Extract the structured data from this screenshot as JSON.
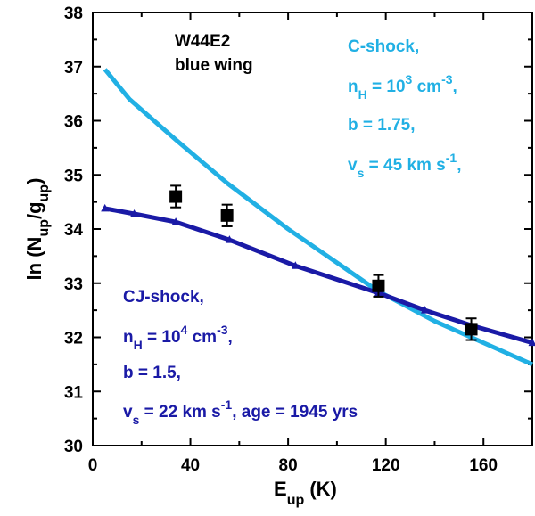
{
  "chart_data": {
    "type": "line",
    "xlabel": {
      "main": "E",
      "sub": "up",
      "unit": " (K)"
    },
    "ylabel": {
      "prefix": "ln (N",
      "sub1": "up",
      "mid": "/g",
      "sub2": "up",
      "suffix": ")"
    },
    "xlim": [
      0,
      180
    ],
    "ylim": [
      30,
      38
    ],
    "xticks": [
      0,
      40,
      80,
      120,
      160
    ],
    "yticks": [
      30,
      31,
      32,
      33,
      34,
      35,
      36,
      37,
      38
    ],
    "series": [
      {
        "key": "cshock",
        "color": "#21b0e4",
        "marker": "none",
        "x": [
          5,
          15,
          34,
          55,
          80,
          117,
          140,
          160,
          180
        ],
        "y": [
          36.95,
          36.4,
          35.65,
          34.85,
          34.0,
          32.85,
          32.3,
          31.9,
          31.5
        ]
      },
      {
        "key": "cjshock",
        "color": "#1a1aa6",
        "marker": "triangle",
        "x": [
          5,
          17,
          34,
          56,
          83,
          117,
          136,
          155,
          180
        ],
        "y": [
          34.38,
          34.28,
          34.13,
          33.8,
          33.32,
          32.82,
          32.5,
          32.22,
          31.9
        ]
      }
    ],
    "observed": {
      "x": [
        34,
        55,
        117,
        155
      ],
      "y": [
        34.6,
        34.25,
        32.95,
        32.15
      ],
      "yerr": [
        0.2,
        0.2,
        0.2,
        0.2
      ]
    },
    "annotations": {
      "source": {
        "line1": "W44E2",
        "line2": "blue wing"
      },
      "cshock": {
        "title": "C-shock,",
        "density": {
          "prefix": "n",
          "sub": "H",
          "mid": " = 10",
          "sup": "3",
          "unit": " cm",
          "unitsup": "-3",
          "tail": ","
        },
        "b": "b = 1.75,",
        "vs": {
          "prefix": "v",
          "sub": "s",
          "mid": " = 45 km s",
          "sup": "-1",
          "tail": ","
        }
      },
      "cjshock": {
        "title": "CJ-shock,",
        "density": {
          "prefix": "n",
          "sub": "H",
          "mid": " = 10",
          "sup": "4",
          "unit": " cm",
          "unitsup": "-3",
          "tail": ","
        },
        "b": "b = 1.5,",
        "vs": {
          "prefix": "v",
          "sub": "s",
          "mid": " = 22 km s",
          "sup": "-1",
          "tail": ", age = 1945 yrs"
        }
      }
    }
  }
}
